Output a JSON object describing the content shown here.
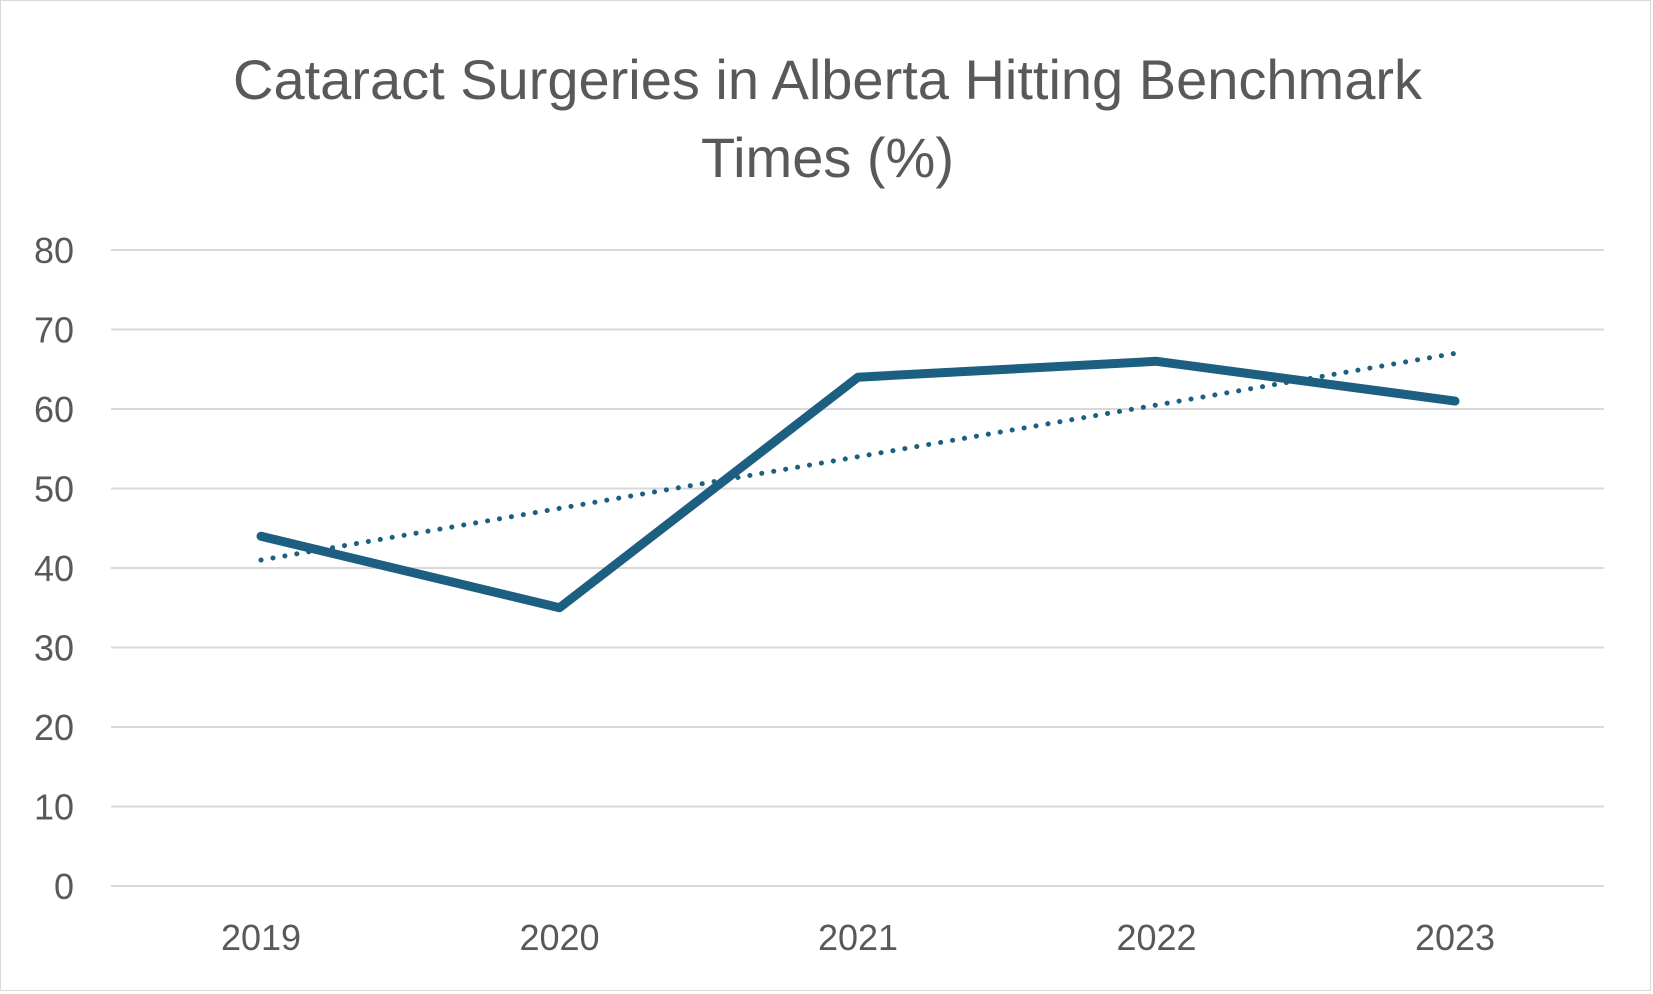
{
  "chart_data": {
    "type": "line",
    "title": "Cataract Surgeries in Alberta Hitting Benchmark Times (%)",
    "xlabel": "",
    "ylabel": "",
    "categories": [
      "2019",
      "2020",
      "2021",
      "2022",
      "2023"
    ],
    "series": [
      {
        "values": [
          44,
          35,
          64,
          66,
          61
        ],
        "color": "#1c5f80",
        "style": "solid"
      }
    ],
    "trendline": {
      "type": "linear",
      "values": [
        41,
        47.5,
        54,
        60.5,
        67
      ],
      "color": "#1c5f80",
      "style": "dotted"
    },
    "ylim": [
      0,
      80
    ],
    "yticks": [
      "0",
      "10",
      "20",
      "30",
      "40",
      "50",
      "60",
      "70",
      "80"
    ],
    "grid": true,
    "legend": "none",
    "colors": {
      "line": "#1c5f80",
      "gridline": "#d9d9d9",
      "text": "#595959",
      "border": "#d9d9d9"
    }
  }
}
